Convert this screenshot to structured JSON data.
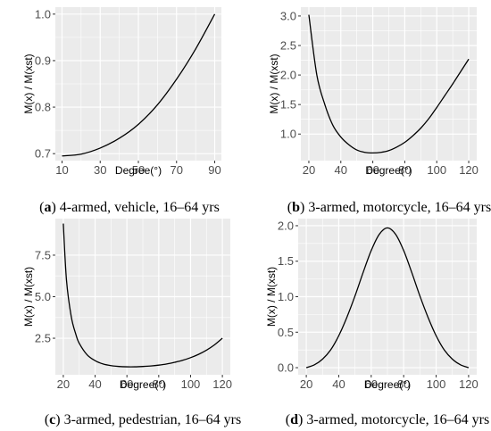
{
  "chart_data": [
    {
      "type": "line",
      "panel_letter": "a",
      "caption": "4-armed, vehicle, 16–64 yrs",
      "xlabel": "Degree(°)",
      "ylabel": "M(x) / M(xst)",
      "xlim": [
        6.5,
        93.5
      ],
      "ylim": [
        0.685,
        1.015
      ],
      "xticks": [
        10,
        30,
        50,
        70,
        90
      ],
      "yticks": [
        0.7,
        0.8,
        0.9,
        1.0
      ],
      "ytick_labels": [
        "0.7",
        "0.8",
        "0.9",
        "1.0"
      ],
      "grid": true,
      "x": [
        10,
        20,
        30,
        40,
        50,
        60,
        70,
        80,
        90
      ],
      "y": [
        0.695,
        0.699,
        0.712,
        0.733,
        0.763,
        0.805,
        0.86,
        0.925,
        1.0
      ]
    },
    {
      "type": "line",
      "panel_letter": "b",
      "caption": "3-armed, motorcycle, 16–64 yrs",
      "xlabel": "Degree(°)",
      "ylabel": "M(x) / M(xst)",
      "xlim": [
        15,
        125
      ],
      "ylim": [
        0.55,
        3.15
      ],
      "xticks": [
        20,
        40,
        60,
        80,
        100,
        120
      ],
      "yticks": [
        1.0,
        1.5,
        2.0,
        2.5,
        3.0
      ],
      "ytick_labels": [
        "1.0",
        "1.5",
        "2.0",
        "2.5",
        "3.0"
      ],
      "grid": true,
      "x": [
        20,
        25,
        30,
        35,
        40,
        45,
        50,
        55,
        60,
        65,
        70,
        75,
        80,
        85,
        90,
        95,
        100,
        105,
        110,
        115,
        120
      ],
      "y": [
        3.02,
        2.0,
        1.5,
        1.15,
        0.95,
        0.82,
        0.73,
        0.69,
        0.68,
        0.69,
        0.72,
        0.78,
        0.86,
        0.97,
        1.1,
        1.26,
        1.45,
        1.65,
        1.85,
        2.06,
        2.27
      ]
    },
    {
      "type": "line",
      "panel_letter": "c",
      "caption": "3-armed, pedestrian, 16–64 yrs",
      "xlabel": "Degree(°)",
      "ylabel": "M(x) / M(xst)",
      "xlim": [
        15,
        125
      ],
      "ylim": [
        0.3,
        9.7
      ],
      "xticks": [
        20,
        40,
        60,
        80,
        100,
        120
      ],
      "yticks": [
        2.5,
        5.0,
        7.5
      ],
      "ytick_labels": [
        "2.5",
        "5.0",
        "7.5"
      ],
      "grid": true,
      "x": [
        20,
        22,
        25,
        28,
        30,
        35,
        40,
        45,
        50,
        55,
        60,
        65,
        70,
        75,
        80,
        85,
        90,
        95,
        100,
        105,
        110,
        115,
        120
      ],
      "y": [
        9.4,
        6.0,
        3.8,
        2.7,
        2.2,
        1.5,
        1.15,
        0.95,
        0.85,
        0.8,
        0.78,
        0.78,
        0.8,
        0.83,
        0.88,
        0.95,
        1.05,
        1.17,
        1.33,
        1.53,
        1.78,
        2.1,
        2.5
      ]
    },
    {
      "type": "line",
      "panel_letter": "d",
      "caption": "3-armed, motorcycle, 16–64 yrs",
      "xlabel": "Degree(°)",
      "ylabel": "M(x) / M(xst)",
      "xlim": [
        15,
        125
      ],
      "ylim": [
        -0.1,
        2.1
      ],
      "xticks": [
        20,
        40,
        60,
        80,
        100,
        120
      ],
      "yticks": [
        0.0,
        0.5,
        1.0,
        1.5,
        2.0
      ],
      "ytick_labels": [
        "0.0",
        "0.5",
        "1.0",
        "1.5",
        "2.0"
      ],
      "grid": true,
      "x": [
        20,
        25,
        30,
        35,
        40,
        45,
        50,
        55,
        60,
        65,
        70,
        75,
        80,
        85,
        90,
        95,
        100,
        105,
        110,
        115,
        120
      ],
      "y": [
        0.0,
        0.04,
        0.12,
        0.25,
        0.45,
        0.71,
        1.01,
        1.34,
        1.65,
        1.88,
        1.97,
        1.88,
        1.65,
        1.34,
        1.01,
        0.71,
        0.45,
        0.25,
        0.12,
        0.04,
        0.0
      ]
    }
  ]
}
